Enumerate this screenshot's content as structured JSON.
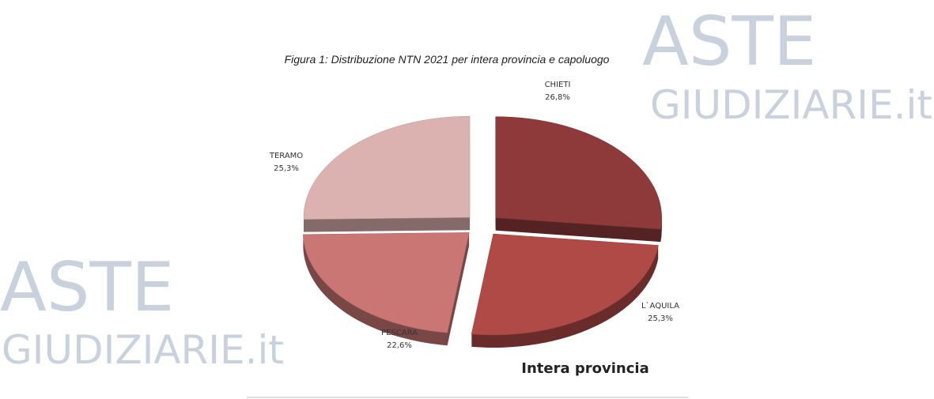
{
  "chart_data": {
    "type": "pie",
    "title": "Figura 1: Distribuzione NTN 2021 per intera provincia e capoluogo",
    "subtitle": "Intera provincia",
    "categories": [
      "CHIETI",
      "L`AQUILA",
      "PESCARA",
      "TERAMO"
    ],
    "values": [
      26.8,
      25.3,
      22.6,
      25.3
    ],
    "value_labels": [
      "26,8%",
      "25,3%",
      "22,6%",
      "25,3%"
    ],
    "colors": [
      "#8e3a3a",
      "#b04a46",
      "#c97674",
      "#dcb2b0"
    ]
  },
  "watermark": {
    "line1": "ASTE",
    "line2": "GIUDIZIARIE.it"
  }
}
